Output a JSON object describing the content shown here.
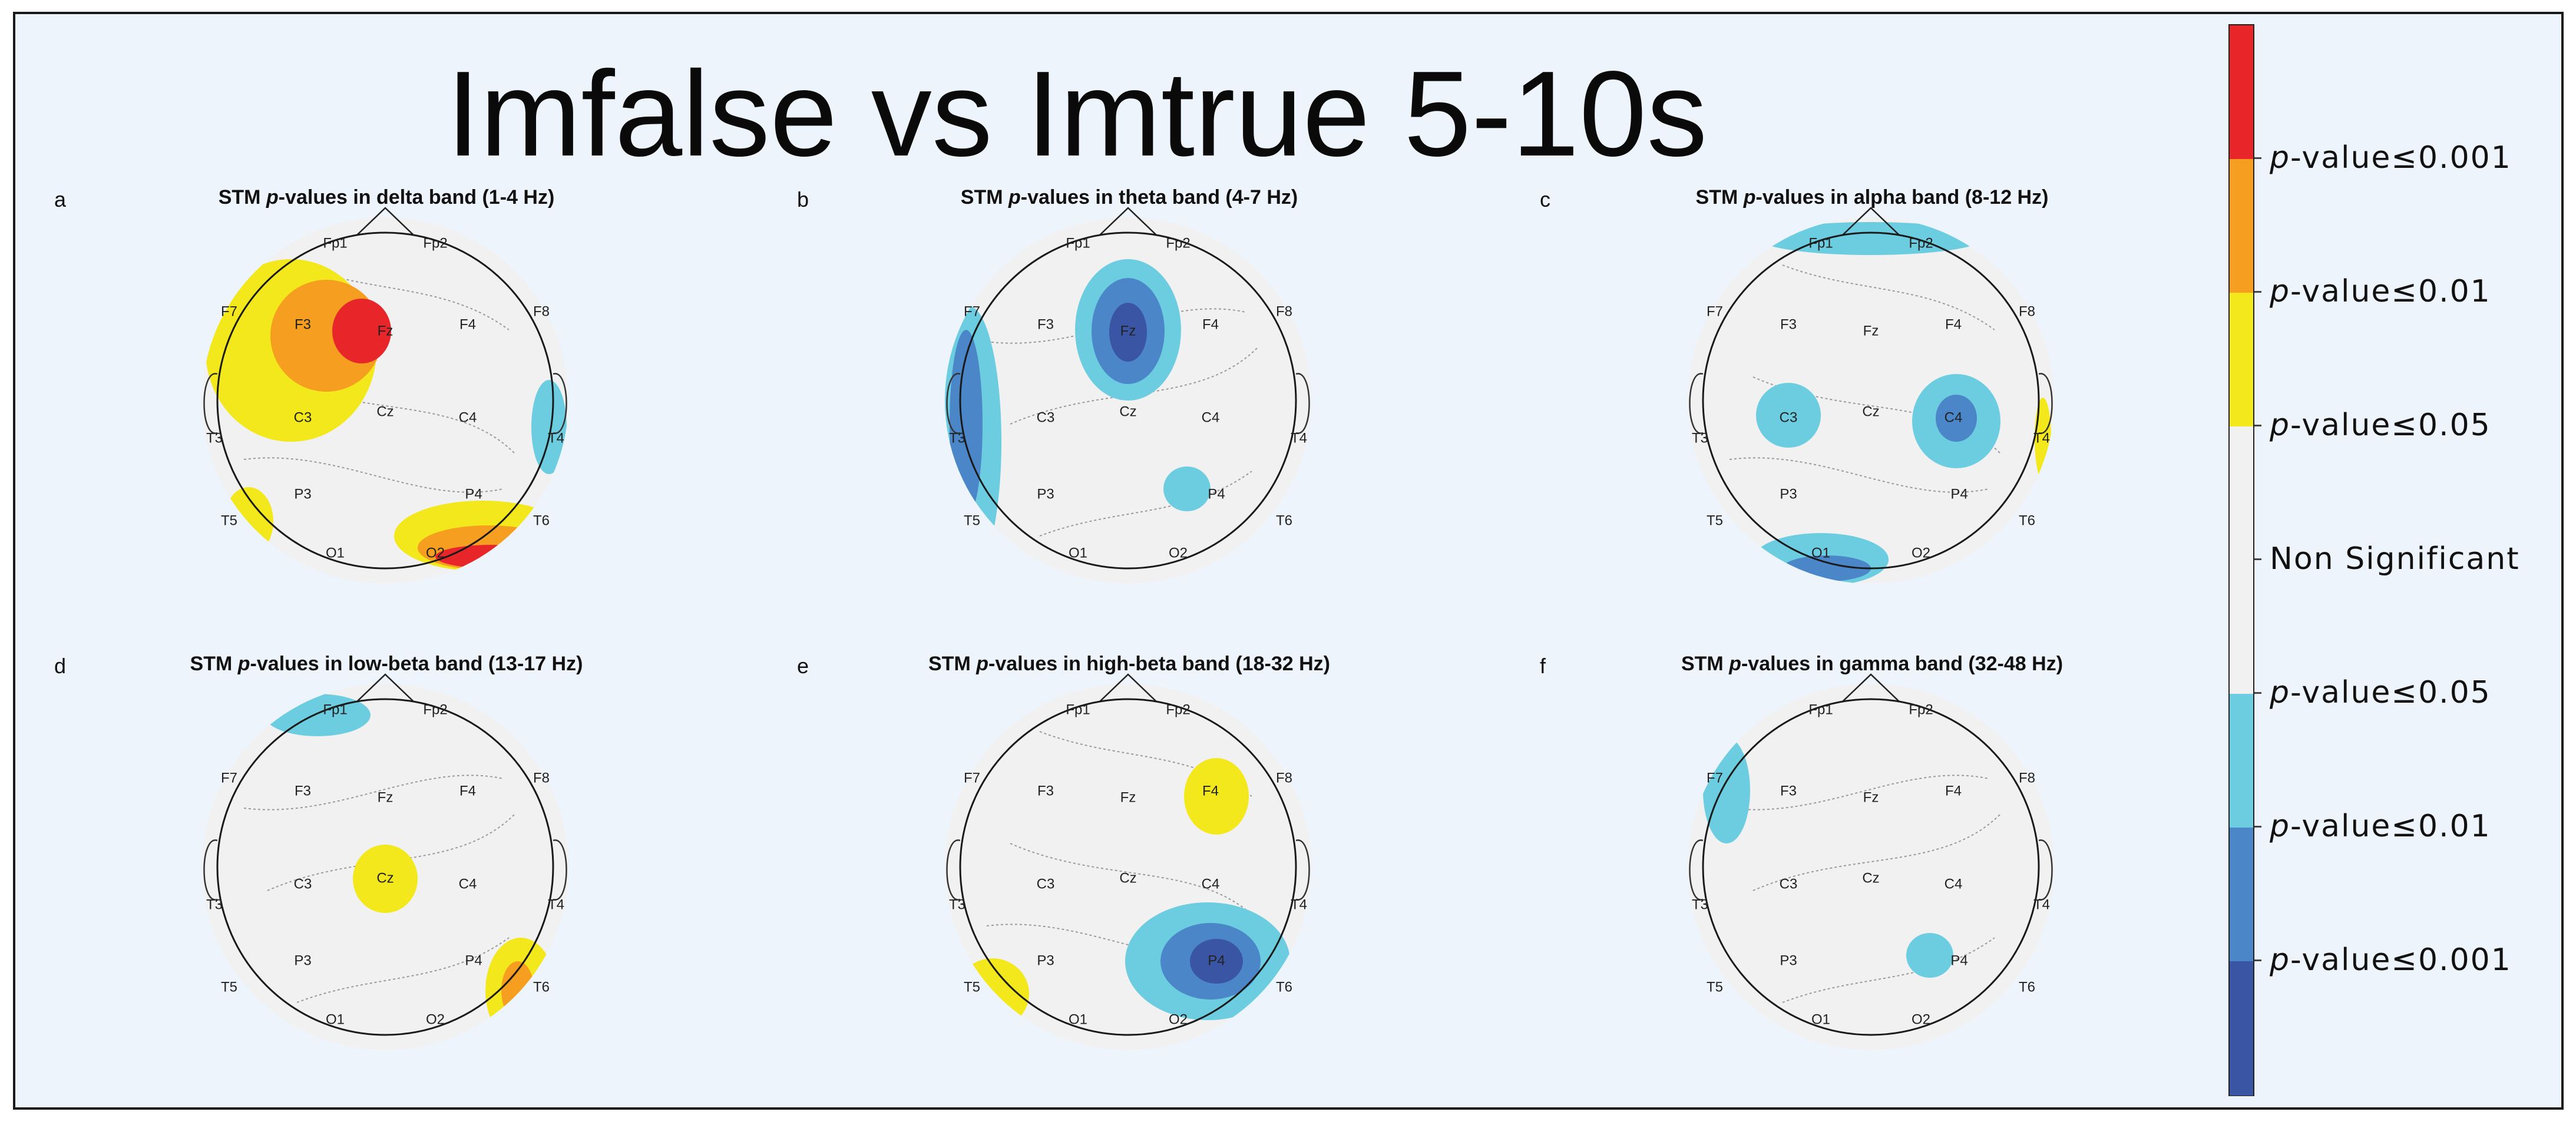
{
  "title": "Imfalse vs Imtrue 5-10s",
  "colors": {
    "p001_pos": "#e8262a",
    "p01_pos": "#f59e20",
    "p05_pos": "#f2e81c",
    "non_significant": "#f1f1f1",
    "p05_neg": "#6ccde0",
    "p01_neg": "#4a86c8",
    "p001_neg": "#3a55a4"
  },
  "panels": [
    {
      "letter": "a",
      "prefix": "STM ",
      "p": "p",
      "suffix": "-values in delta band (1-4 Hz)",
      "blobs": [
        {
          "electrode": "Fz",
          "level": "p05_pos",
          "shape": "F3_region"
        },
        {
          "electrode": "Fz",
          "level": "p01_pos",
          "shape": "F3_core"
        },
        {
          "electrode": "Fz",
          "level": "p001_pos",
          "shape": "Fz_center"
        },
        {
          "electrode": "T4",
          "level": "p05_neg",
          "shape": "T4_edge"
        },
        {
          "electrode": "T5",
          "level": "p05_pos",
          "shape": "T5_edge"
        },
        {
          "electrode": "T6",
          "level": "p05_pos",
          "shape": "O2_band"
        },
        {
          "electrode": "T6",
          "level": "p01_pos",
          "shape": "O2_band_mid"
        },
        {
          "electrode": "T6",
          "level": "p001_pos",
          "shape": "O2_band_core"
        }
      ]
    },
    {
      "letter": "b",
      "prefix": "STM ",
      "p": "p",
      "suffix": "-values in theta band (4-7 Hz)",
      "blobs": [
        {
          "electrode": "Fz",
          "level": "p05_neg",
          "shape": "Fz_large"
        },
        {
          "electrode": "Fz",
          "level": "p01_neg",
          "shape": "Fz_mid"
        },
        {
          "electrode": "Fz",
          "level": "p001_neg",
          "shape": "Fz_core"
        },
        {
          "electrode": "T3",
          "level": "p05_neg",
          "shape": "left_edge"
        },
        {
          "electrode": "T3",
          "level": "p01_neg",
          "shape": "left_edge_core"
        },
        {
          "electrode": "P4",
          "level": "p05_neg",
          "shape": "P4_small"
        }
      ]
    },
    {
      "letter": "c",
      "prefix": "STM ",
      "p": "p",
      "suffix": "-values in alpha band (8-12 Hz)",
      "blobs": [
        {
          "electrode": "Fp1",
          "level": "p05_neg",
          "shape": "frontal_top"
        },
        {
          "electrode": "C3",
          "level": "p05_neg",
          "shape": "C3_small"
        },
        {
          "electrode": "C4",
          "level": "p05_neg",
          "shape": "C4_mid"
        },
        {
          "electrode": "C4",
          "level": "p01_neg",
          "shape": "C4_core"
        },
        {
          "electrode": "O1",
          "level": "p05_neg",
          "shape": "O1_bottom"
        },
        {
          "electrode": "O1",
          "level": "p01_neg",
          "shape": "O1_bottom_core"
        },
        {
          "electrode": "T4",
          "level": "p05_pos",
          "shape": "T4_sliver"
        }
      ]
    },
    {
      "letter": "d",
      "prefix": "STM ",
      "p": "p",
      "suffix": "-values in low-beta band (13-17 Hz)",
      "blobs": [
        {
          "electrode": "Fp1",
          "level": "p05_neg",
          "shape": "Fp1_corner"
        },
        {
          "electrode": "Cz",
          "level": "p05_pos",
          "shape": "Cz_small"
        },
        {
          "electrode": "T6",
          "level": "p05_pos",
          "shape": "T6_corner"
        },
        {
          "electrode": "T6",
          "level": "p01_pos",
          "shape": "T6_corner_core"
        }
      ]
    },
    {
      "letter": "e",
      "prefix": "STM ",
      "p": "p",
      "suffix": "-values in high-beta band (18-32 Hz)",
      "blobs": [
        {
          "electrode": "F4",
          "level": "p05_pos",
          "shape": "F4_small"
        },
        {
          "electrode": "P4",
          "level": "p05_neg",
          "shape": "P4_large"
        },
        {
          "electrode": "P4",
          "level": "p01_neg",
          "shape": "P4_mid"
        },
        {
          "electrode": "P4",
          "level": "p001_neg",
          "shape": "P4_core"
        },
        {
          "electrode": "T5",
          "level": "p05_pos",
          "shape": "T5_corner"
        }
      ]
    },
    {
      "letter": "f",
      "prefix": "STM ",
      "p": "p",
      "suffix": "-values in gamma band (32-48 Hz)",
      "blobs": [
        {
          "electrode": "F7",
          "level": "p05_neg",
          "shape": "F7_corner"
        },
        {
          "electrode": "P4",
          "level": "p05_neg",
          "shape": "P4_small"
        }
      ]
    }
  ],
  "electrodes": [
    "Fp1",
    "Fp2",
    "F7",
    "F3",
    "Fz",
    "F4",
    "F8",
    "T3",
    "C3",
    "Cz",
    "C4",
    "T4",
    "T5",
    "P3",
    "P4",
    "T6",
    "O1",
    "O2"
  ],
  "colorbar": {
    "segments": [
      "p001_pos",
      "p01_pos",
      "p05_pos",
      "non_significant",
      "non_significant",
      "p05_neg",
      "p01_neg",
      "p001_neg"
    ],
    "labels": [
      {
        "p": "p",
        "text": "-value≤0.001"
      },
      {
        "p": "p",
        "text": "-value≤0.01"
      },
      {
        "p": "p",
        "text": "-value≤0.05"
      },
      {
        "p": "",
        "text": "Non Significant"
      },
      {
        "p": "p",
        "text": "-value≤0.05"
      },
      {
        "p": "p",
        "text": "-value≤0.01"
      },
      {
        "p": "p",
        "text": "-value≤0.001"
      }
    ]
  }
}
